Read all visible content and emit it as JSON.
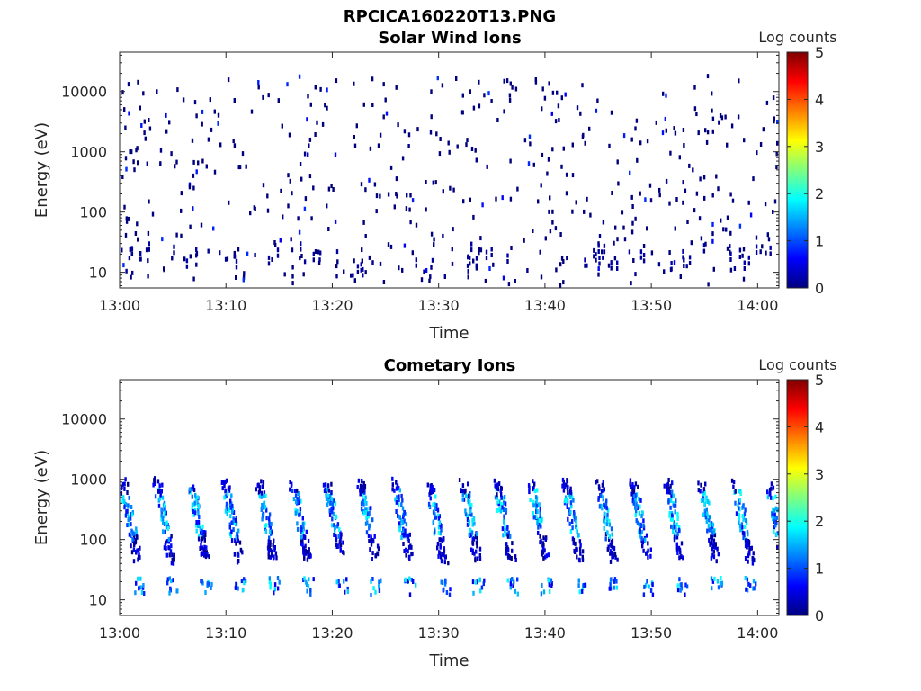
{
  "figure_title": "RPCICA160220T13.PNG",
  "colors": {
    "colormap": [
      "#00007f",
      "#0000ff",
      "#007fff",
      "#00ffff",
      "#7fff7f",
      "#ffff00",
      "#ff7f00",
      "#ff0000",
      "#7f0000"
    ]
  },
  "chart_data": [
    {
      "type": "heatmap",
      "title": "Solar Wind Ions",
      "xlabel": "Time",
      "ylabel": "Energy (eV)",
      "yscale": "log",
      "xlim": [
        "13:00",
        "14:02"
      ],
      "ylim": [
        5.5,
        45000
      ],
      "x_ticks": [
        "13:00",
        "13:10",
        "13:20",
        "13:30",
        "13:40",
        "13:50",
        "14:00"
      ],
      "y_ticks": [
        "10",
        "100",
        "1000",
        "10000"
      ],
      "colorbar": {
        "label": "Log counts",
        "range": [
          0,
          5
        ],
        "ticks": [
          "0",
          "1",
          "2",
          "3",
          "4",
          "5"
        ]
      },
      "grid": false,
      "pattern": "sparse low counts (0-1) scattered 10 eV - 20000 eV"
    },
    {
      "type": "heatmap",
      "title": "Cometary Ions",
      "xlabel": "Time",
      "ylabel": "Energy (eV)",
      "yscale": "log",
      "xlim": [
        "13:00",
        "14:02"
      ],
      "ylim": [
        5.5,
        45000
      ],
      "x_ticks": [
        "13:00",
        "13:10",
        "13:20",
        "13:30",
        "13:40",
        "13:50",
        "14:00"
      ],
      "y_ticks": [
        "10",
        "100",
        "1000",
        "10000"
      ],
      "colorbar": {
        "label": "Log counts",
        "range": [
          0,
          5
        ],
        "ticks": [
          "0",
          "1",
          "2",
          "3",
          "4",
          "5"
        ]
      },
      "grid": false,
      "pattern": "periodic energy sweeps (~3.2 min) 100-1000 eV, counts up to ~2, persistent band 15-25 eV"
    }
  ]
}
